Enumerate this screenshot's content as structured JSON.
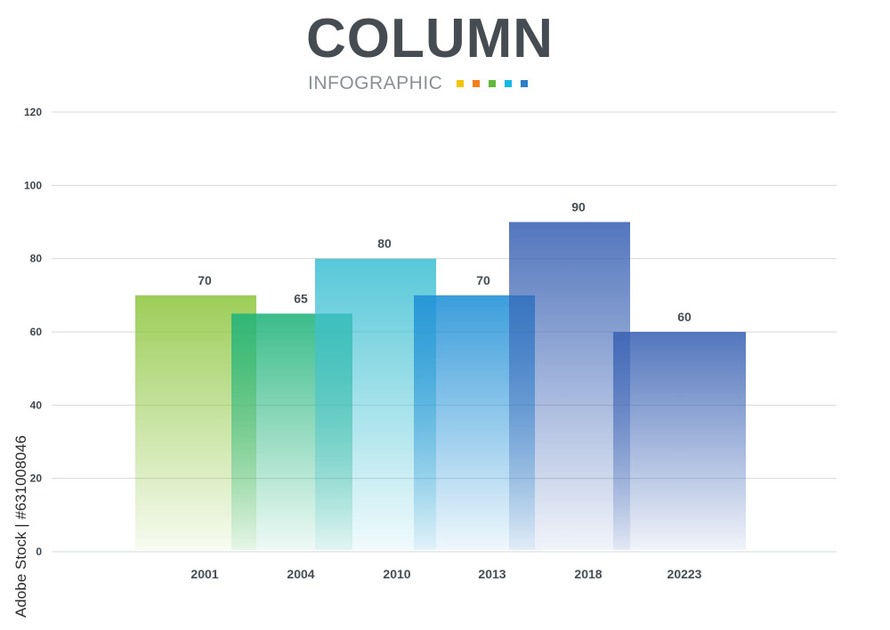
{
  "header": {
    "title": "COLUMN",
    "subtitle": "INFOGRAPHIC",
    "swatches": [
      "#f2c500",
      "#f07f1c",
      "#61b93b",
      "#15b8e0",
      "#2c7fc4"
    ]
  },
  "watermark": {
    "side_text": "Adobe Stock | #631008046"
  },
  "chart_data": {
    "type": "bar",
    "title": "COLUMN",
    "subtitle": "INFOGRAPHIC",
    "categories": [
      "2001",
      "2004",
      "2010",
      "2013",
      "2018",
      "20223"
    ],
    "values": [
      70,
      65,
      80,
      70,
      90,
      60
    ],
    "ylim": [
      0,
      120
    ],
    "yticks": [
      0,
      20,
      40,
      60,
      80,
      100,
      120
    ],
    "grid": true,
    "bars_overlap": true,
    "colors": [
      "#8ec63f",
      "#1fb37a",
      "#3fc0d3",
      "#1e8fd6",
      "#3a62b4",
      "#3a62b4"
    ]
  }
}
